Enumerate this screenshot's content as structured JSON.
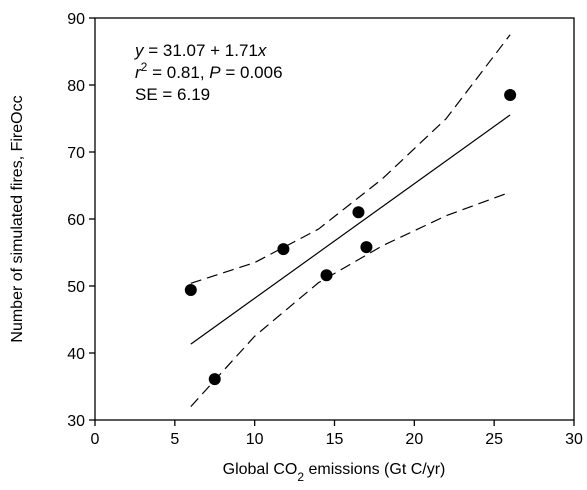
{
  "chart_data": {
    "type": "scatter",
    "x_label": [
      {
        "text": "Global CO"
      },
      {
        "text": "2",
        "sub": true
      },
      {
        "text": " emissions (Gt C/yr)"
      }
    ],
    "y_label": "Number of simulated fires, FireOcc",
    "annotations": [
      [
        {
          "text": "y",
          "italic": true
        },
        {
          "text": " = 31.07 + 1.71"
        },
        {
          "text": "x",
          "italic": true
        }
      ],
      [
        {
          "text": "r",
          "italic": true
        },
        {
          "text": "2",
          "sup": true
        },
        {
          "text": " = 0.81, "
        },
        {
          "text": "P",
          "italic": true
        },
        {
          "text": " = 0.006"
        }
      ],
      [
        {
          "text": "SE = 6.19"
        }
      ]
    ],
    "xlim": [
      0,
      30
    ],
    "xticks": [
      0,
      5,
      10,
      15,
      20,
      25,
      30
    ],
    "ylim": [
      30,
      90
    ],
    "yticks": [
      30,
      40,
      50,
      60,
      70,
      80,
      90
    ],
    "series": [
      {
        "mark": "circle",
        "color": "#000000",
        "x": [
          6,
          7.5,
          11.8,
          14.5,
          16.5,
          17,
          26
        ],
        "values": [
          49.4,
          36.1,
          55.5,
          51.6,
          61,
          55.8,
          78.5
        ]
      },
      {
        "mark": "line",
        "color": "#000000",
        "x": [
          6,
          26
        ],
        "values": [
          41.33,
          75.53
        ]
      },
      {
        "mark": "line",
        "dashed": true,
        "color": "#000000",
        "x": [
          6,
          10,
          14,
          18,
          22,
          26
        ],
        "values": [
          50.4,
          53.5,
          58.5,
          66,
          75,
          87.5
        ]
      },
      {
        "mark": "line",
        "dashed": true,
        "color": "#000000",
        "x": [
          6,
          10,
          14,
          18,
          22,
          26
        ],
        "values": [
          32,
          42.5,
          50.5,
          56,
          60.5,
          64
        ]
      }
    ]
  }
}
